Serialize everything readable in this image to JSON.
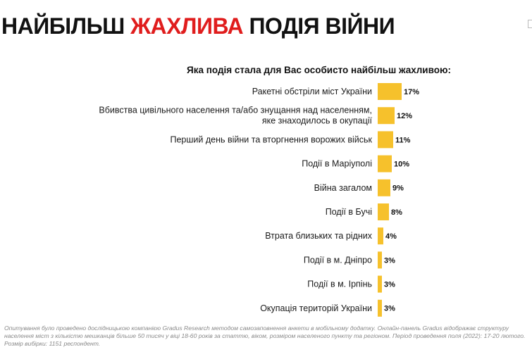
{
  "title": {
    "part1": "НАЙБІЛЬШ ",
    "part2": "ЖАХЛИВА",
    "part3": " ПОДІЯ ВІЙНИ"
  },
  "colors": {
    "accent": "#e01d1d",
    "bar": "#f6c12c",
    "footnote": "#8a8a8a"
  },
  "chart_data": {
    "type": "bar",
    "orientation": "horizontal",
    "title": "Яка подія стала для Вас особисто найбільш жахливою:",
    "xlabel": "",
    "ylabel": "",
    "xlim": [
      0,
      17
    ],
    "value_suffix": "%",
    "categories": [
      [
        "Ракетні обстріли міст України"
      ],
      [
        "Вбивства цивільного населення та/або знущання над населенням,",
        "яке знаходилось в окупації"
      ],
      [
        "Перший день війни та вторгнення ворожих військ"
      ],
      [
        "Події в Маріуполі"
      ],
      [
        "Війна загалом"
      ],
      [
        "Події в Бучі"
      ],
      [
        "Втрата близьких та рідних"
      ],
      [
        "Події в м. Дніпро"
      ],
      [
        "Події в м. Ірпінь"
      ],
      [
        "Окупація територій України"
      ]
    ],
    "values": [
      17,
      12,
      11,
      10,
      9,
      8,
      4,
      3,
      3,
      3
    ]
  },
  "footnote": "Опитування було проведено дослідницькою компанією Gradus Research методом самозаповнення анкети в мобільному додатку. Онлайн-панель Gradus відображає структуру населення міст з кількістю мешканців більше 50 тисяч у віці 18-60 років за статтю, віком, розміром населеного пункту та регіоном. Період проведення поля (2022): 17-20 лютого. Розмір вибірки: 1151 респондент."
}
